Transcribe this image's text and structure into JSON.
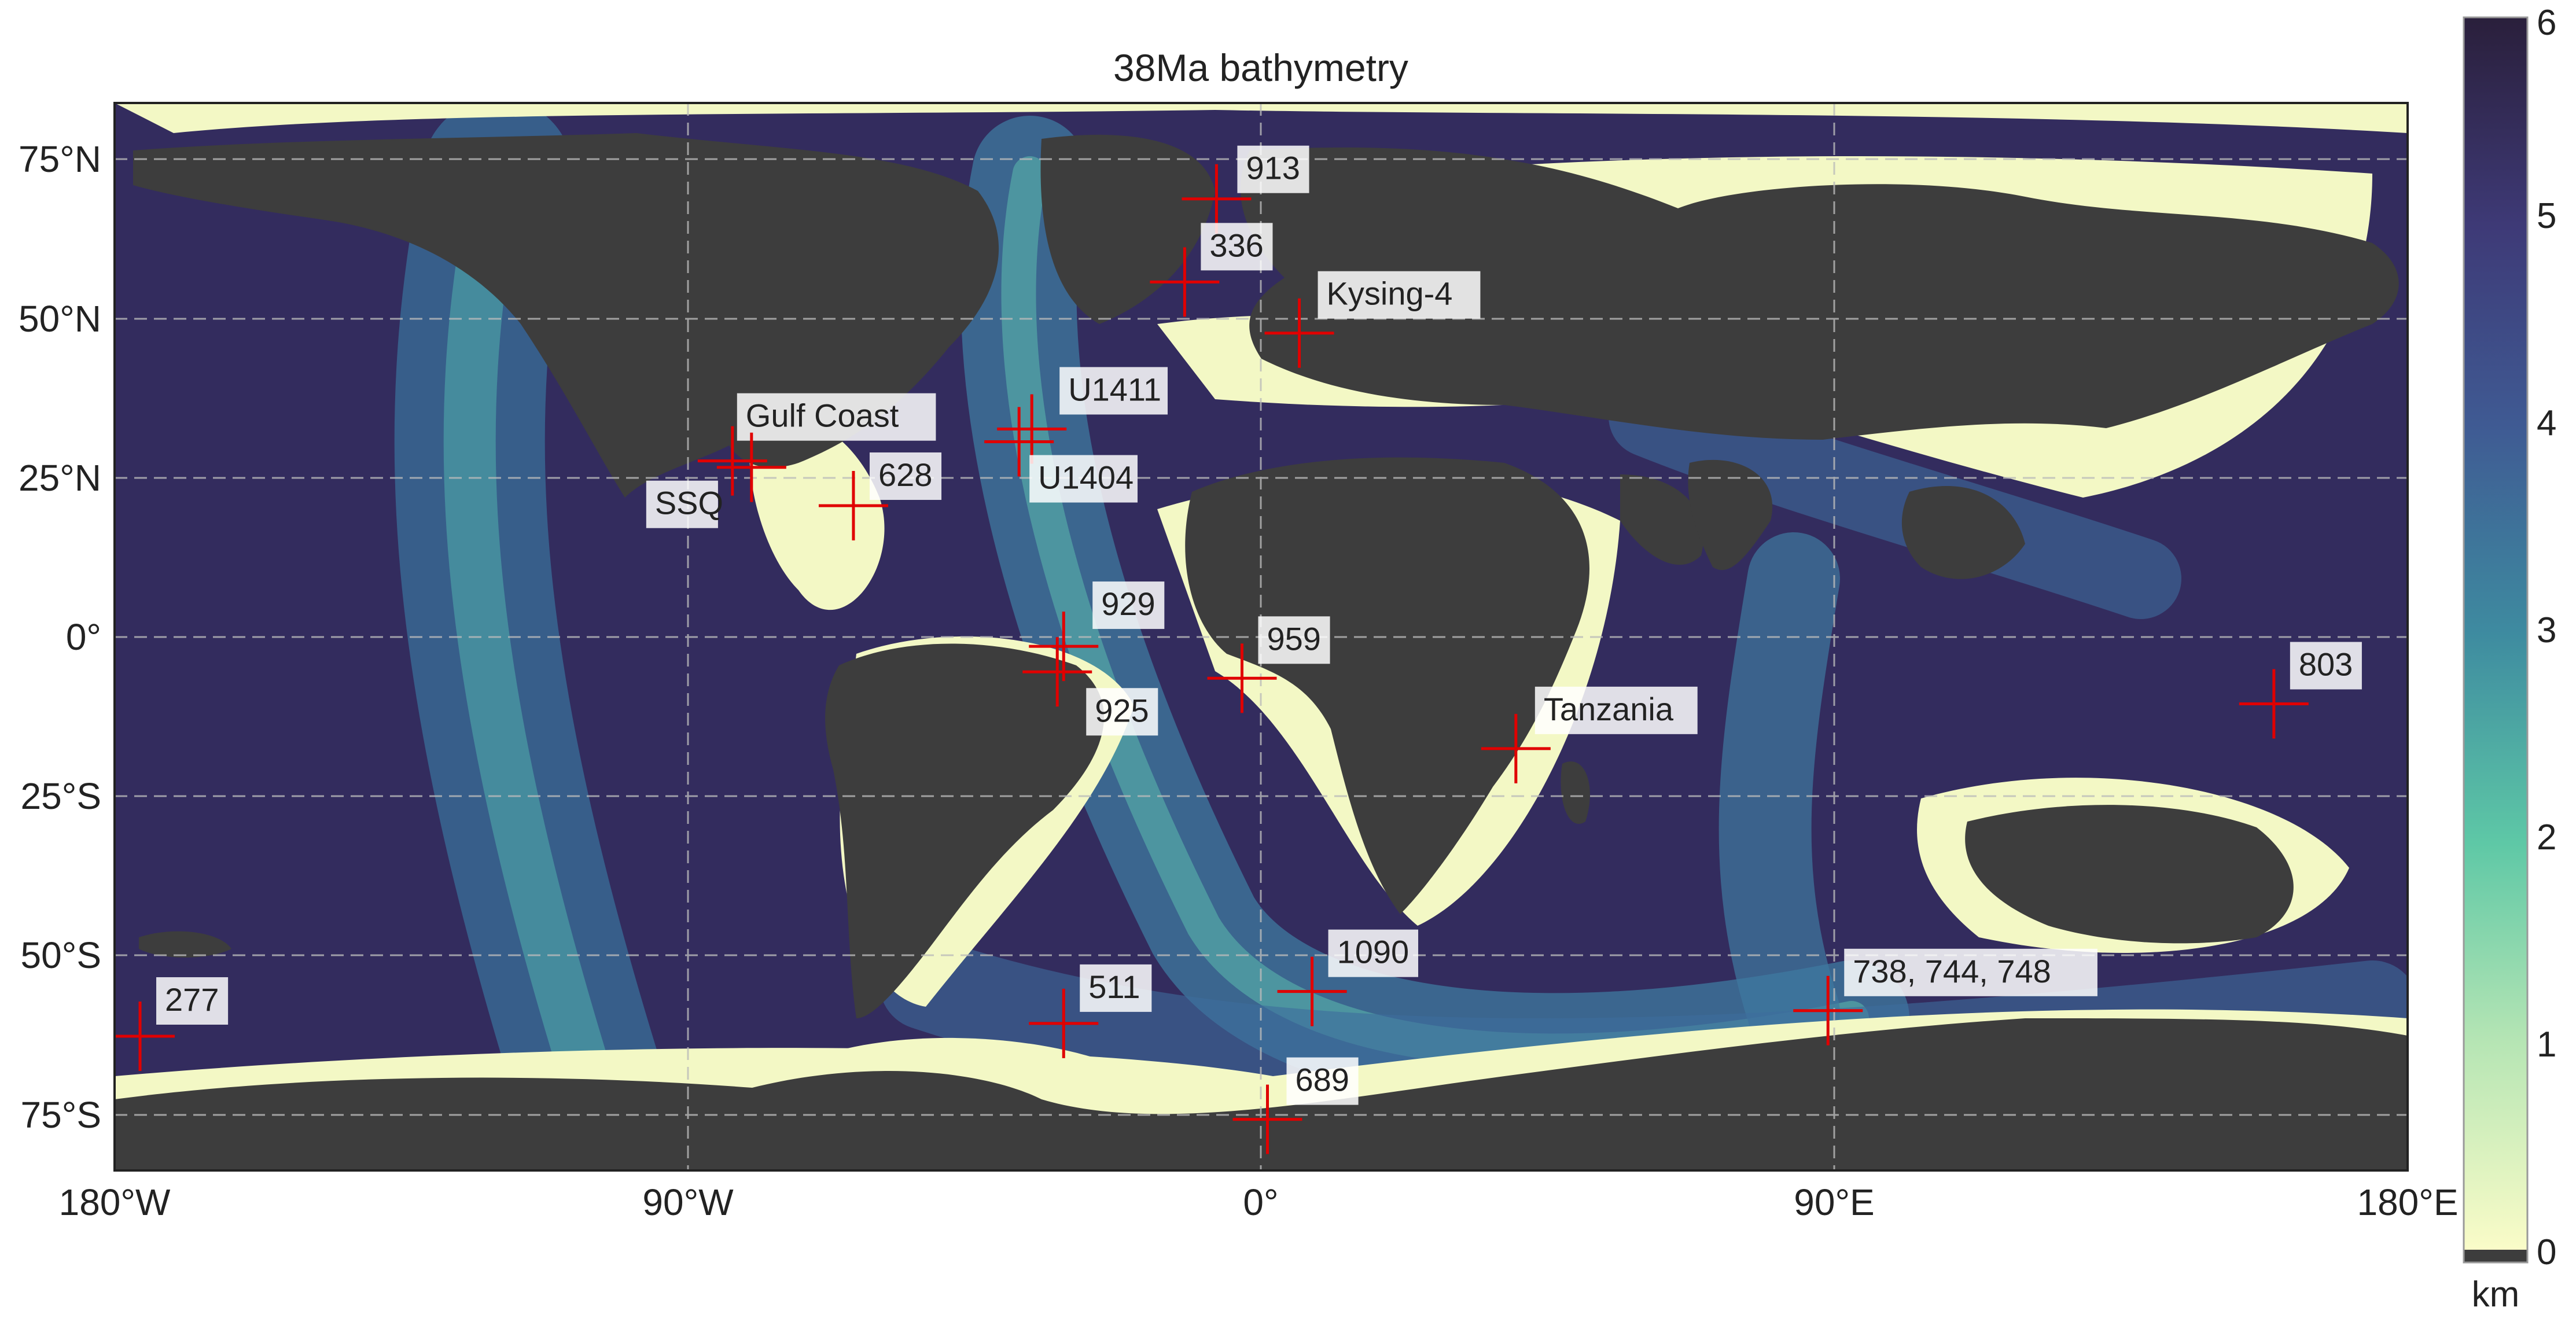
{
  "title": "38Ma bathymetry",
  "lon_ticks": [
    "180°W",
    "90°W",
    "0°",
    "90°E",
    "180°E"
  ],
  "lat_ticks": [
    "75°N",
    "50°N",
    "25°N",
    "0°",
    "25°S",
    "50°S",
    "75°S"
  ],
  "colorbar": {
    "unit": "km",
    "ticks": [
      "0",
      "1",
      "2",
      "3",
      "4",
      "5",
      "6"
    ],
    "range": [
      0,
      6
    ],
    "stops": [
      "#fafcc8",
      "#b5e5b4",
      "#5ec8a6",
      "#3e8ba0",
      "#3f5a93",
      "#3e3a77",
      "#2a1f3b"
    ],
    "land_color": "#3d3d3d"
  },
  "colors": {
    "marker": "#e00000",
    "land": "#3d3d3d",
    "shelf": "#f3f8c5",
    "deep": "#2f2a57"
  },
  "sites": [
    {
      "name": "913",
      "lon": -7,
      "lat": 70
    },
    {
      "name": "336",
      "lon": -12,
      "lat": 57
    },
    {
      "name": "Kysing-4",
      "lon": 6,
      "lat": 49
    },
    {
      "name": "U1411",
      "lon": -36,
      "lat": 34
    },
    {
      "name": "U1404",
      "lon": -38,
      "lat": 32
    },
    {
      "name": "Gulf Coast",
      "lon": -83,
      "lat": 29
    },
    {
      "name": "628",
      "lon": -64,
      "lat": 22
    },
    {
      "name": "SSQ",
      "lon": -80,
      "lat": 28
    },
    {
      "name": "929",
      "lon": -31,
      "lat": 0
    },
    {
      "name": "925",
      "lon": -32,
      "lat": -4
    },
    {
      "name": "959",
      "lon": -3,
      "lat": -5
    },
    {
      "name": "Tanzania",
      "lon": 40,
      "lat": -16
    },
    {
      "name": "803",
      "lon": 159,
      "lat": -9
    },
    {
      "name": "277",
      "lon": -176,
      "lat": -61
    },
    {
      "name": "511",
      "lon": -31,
      "lat": -59
    },
    {
      "name": "1090",
      "lon": 8,
      "lat": -54
    },
    {
      "name": "738, 744, 748",
      "lon": 89,
      "lat": -57
    },
    {
      "name": "689",
      "lon": 1,
      "lat": -74
    }
  ]
}
